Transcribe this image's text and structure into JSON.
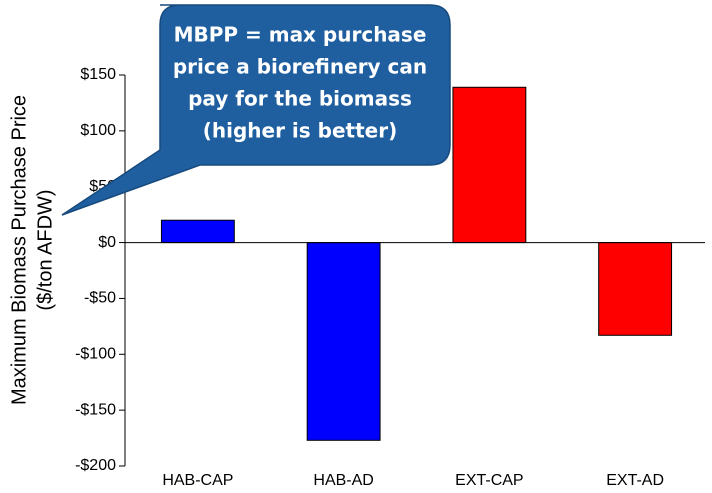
{
  "chart_data": {
    "type": "bar",
    "ylabel": [
      "Maximum Biomass Purchase Price",
      "($/ton AFDW)"
    ],
    "annotation": [
      "MBPP = max purchase",
      "price a biorefinery can",
      "pay for the biomass",
      "(higher is better)"
    ],
    "categories": [
      "HAB-CAP",
      "HAB-AD",
      "EXT-CAP",
      "EXT-AD"
    ],
    "values": [
      20,
      -177,
      139,
      -83
    ],
    "colors": [
      "#0000ff",
      "#0000ff",
      "#ff0000",
      "#ff0000"
    ],
    "ylim": [
      -200,
      150
    ],
    "yticks": [
      {
        "value": -200,
        "label": "-$200"
      },
      {
        "value": -150,
        "label": "-$150"
      },
      {
        "value": -100,
        "label": "-$100"
      },
      {
        "value": -50,
        "label": "-$50"
      },
      {
        "value": 0,
        "label": "$0"
      },
      {
        "value": 50,
        "label": "$50"
      },
      {
        "value": 100,
        "label": "$100"
      },
      {
        "value": 150,
        "label": "$150"
      }
    ],
    "grid": false
  }
}
